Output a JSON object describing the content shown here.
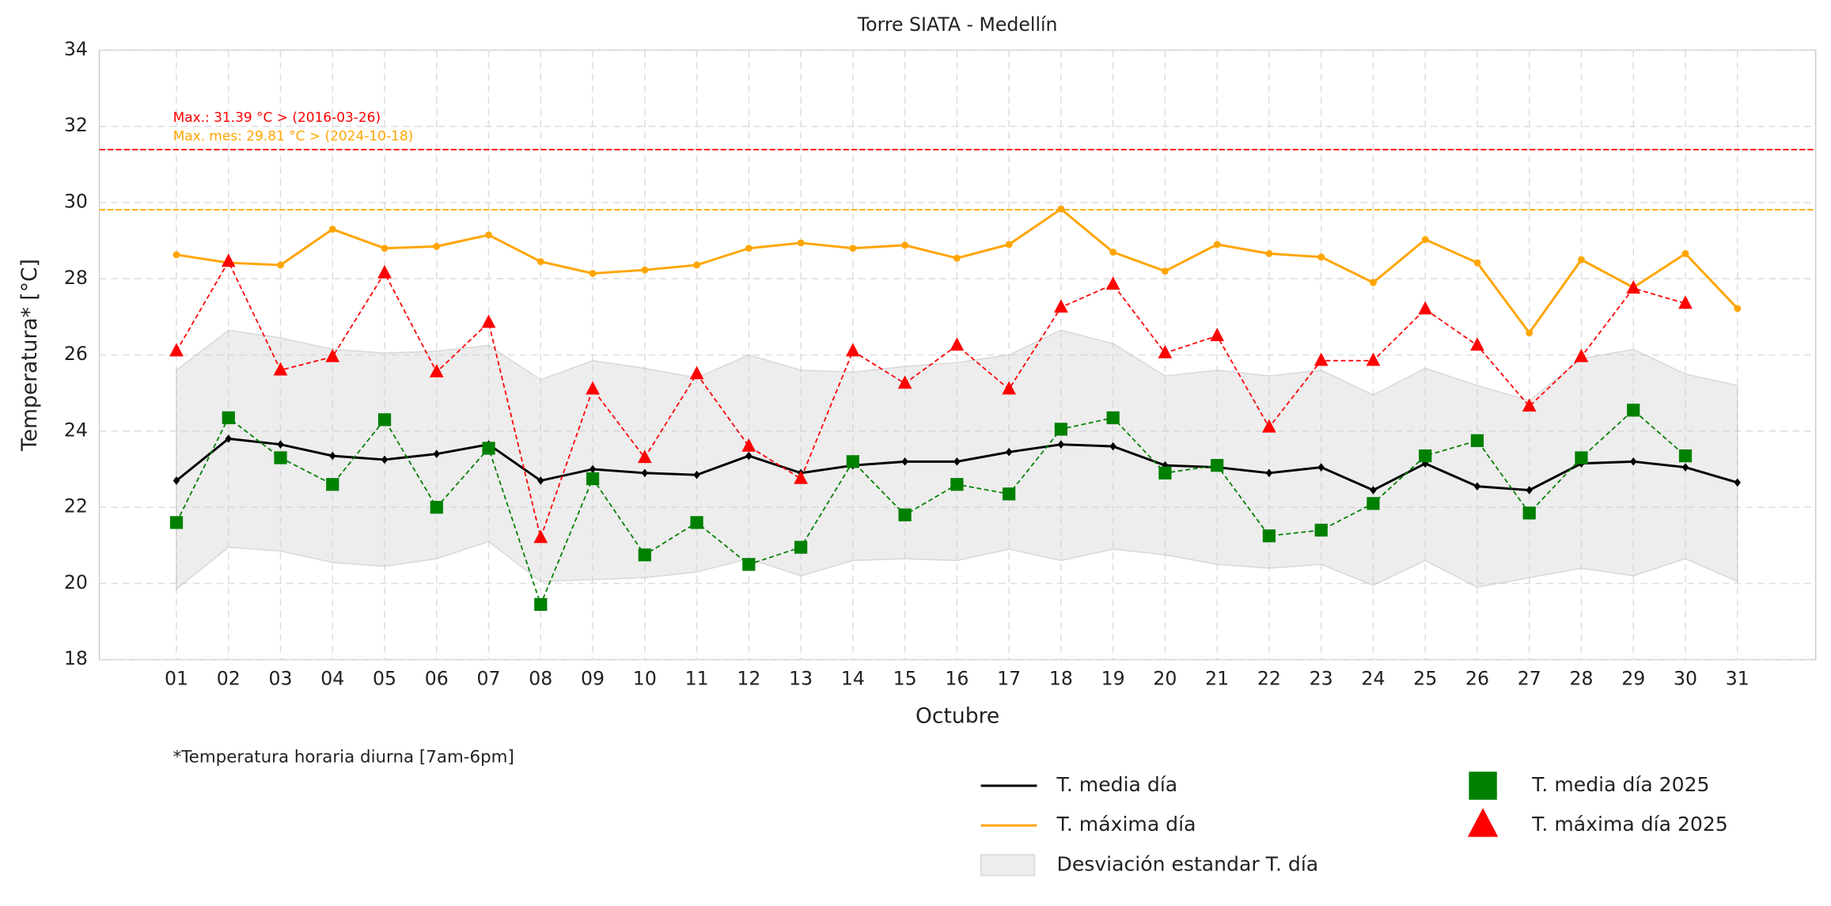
{
  "chart_data": {
    "type": "line",
    "title": "Torre SIATA - Medellín",
    "xlabel": "Octubre",
    "ylabel": "Temperatura* [°C]",
    "footnote": "*Temperatura horaria diurna [7am-6pm]",
    "categories": [
      "01",
      "02",
      "03",
      "04",
      "05",
      "06",
      "07",
      "08",
      "09",
      "10",
      "11",
      "12",
      "13",
      "14",
      "15",
      "16",
      "17",
      "18",
      "19",
      "20",
      "21",
      "22",
      "23",
      "24",
      "25",
      "26",
      "27",
      "28",
      "29",
      "30",
      "31"
    ],
    "ylim": [
      18,
      34
    ],
    "yticks": [
      18,
      20,
      22,
      24,
      26,
      28,
      30,
      32,
      34
    ],
    "grid": true,
    "hlines": [
      {
        "value": 31.39,
        "color": "#ff0000",
        "label": "Max.: 31.39 °C  >  (2016-03-26)"
      },
      {
        "value": 29.81,
        "color": "#ffa500",
        "label": "Max. mes: 29.81 °C  >  (2024-10-18)"
      }
    ],
    "series": [
      {
        "name": "T. media día",
        "color": "#000000",
        "marker": "diamond",
        "style": "solid",
        "values": [
          22.7,
          23.8,
          23.65,
          23.35,
          23.25,
          23.4,
          23.65,
          22.7,
          23.0,
          22.9,
          22.85,
          23.35,
          22.9,
          23.1,
          23.2,
          23.2,
          23.45,
          23.65,
          23.6,
          23.1,
          23.05,
          22.9,
          23.05,
          22.45,
          23.15,
          22.55,
          22.45,
          23.15,
          23.2,
          23.05,
          22.65
        ]
      },
      {
        "name": "T. máxima día",
        "color": "#ffa500",
        "marker": "circle",
        "style": "solid",
        "values": [
          28.63,
          28.42,
          28.36,
          29.3,
          28.8,
          28.85,
          29.15,
          28.45,
          28.14,
          28.23,
          28.36,
          28.8,
          28.94,
          28.8,
          28.88,
          28.54,
          28.9,
          29.83,
          28.7,
          28.2,
          28.9,
          28.66,
          28.57,
          27.9,
          29.03,
          28.42,
          26.58,
          28.5,
          27.77,
          28.66,
          27.22
        ]
      },
      {
        "name": "Desviación estandar T. día",
        "color": "#d3d3d3",
        "kind": "band",
        "upper": [
          25.6,
          26.65,
          26.45,
          26.15,
          26.05,
          26.1,
          26.25,
          25.35,
          25.85,
          25.65,
          25.4,
          26.0,
          25.6,
          25.55,
          25.7,
          25.8,
          26.0,
          26.65,
          26.3,
          25.45,
          25.6,
          25.45,
          25.6,
          24.95,
          25.65,
          25.2,
          24.8,
          25.9,
          26.15,
          25.5,
          25.2
        ],
        "lower": [
          19.85,
          20.95,
          20.85,
          20.55,
          20.45,
          20.65,
          21.1,
          20.05,
          20.1,
          20.15,
          20.3,
          20.65,
          20.2,
          20.6,
          20.65,
          20.6,
          20.9,
          20.6,
          20.9,
          20.75,
          20.5,
          20.4,
          20.5,
          19.95,
          20.6,
          19.9,
          20.15,
          20.4,
          20.2,
          20.65,
          20.05
        ]
      },
      {
        "name": "T. media día 2025",
        "color": "#008000",
        "marker": "square",
        "style": "dashed",
        "values": [
          21.6,
          24.35,
          23.3,
          22.6,
          24.3,
          22.0,
          23.55,
          19.45,
          22.75,
          20.75,
          21.6,
          20.5,
          20.95,
          23.2,
          21.8,
          22.6,
          22.35,
          24.05,
          24.35,
          22.9,
          23.1,
          21.25,
          21.4,
          22.1,
          23.35,
          23.75,
          21.85,
          23.3,
          24.55,
          23.35,
          null
        ]
      },
      {
        "name": "T. máxima día 2025",
        "color": "#ff0000",
        "marker": "triangle",
        "style": "dashed",
        "values": [
          26.1,
          28.45,
          25.6,
          25.95,
          28.15,
          25.55,
          26.85,
          21.2,
          25.1,
          23.3,
          25.5,
          23.6,
          22.75,
          26.1,
          25.25,
          26.25,
          25.1,
          27.25,
          27.85,
          26.05,
          26.5,
          24.1,
          25.85,
          25.85,
          27.2,
          26.25,
          24.65,
          25.95,
          27.75,
          27.35,
          null
        ]
      }
    ]
  }
}
